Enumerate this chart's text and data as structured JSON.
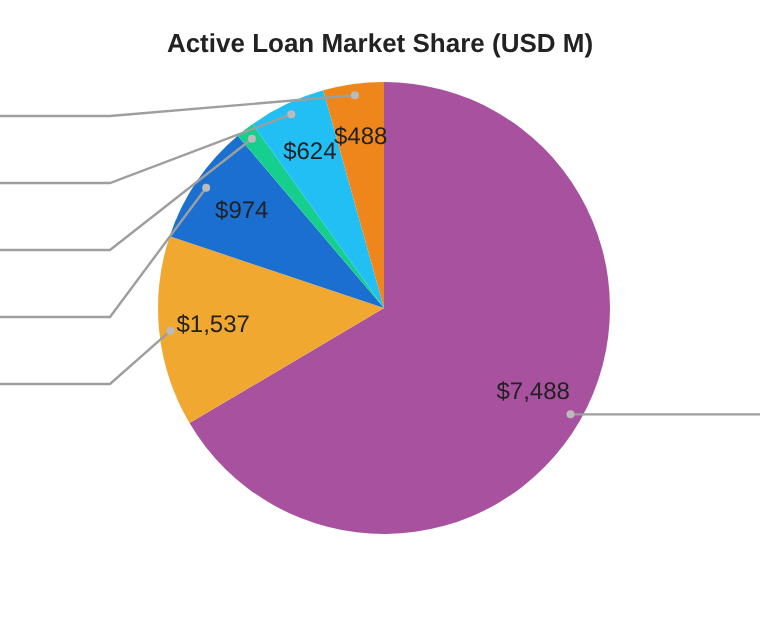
{
  "chart_data": {
    "type": "pie",
    "title": "Active Loan Market Share (USD M)",
    "categories": [
      null,
      null,
      null,
      null,
      null,
      null
    ],
    "values": [
      7488,
      1537,
      974,
      150,
      624,
      488
    ],
    "colors": [
      "#a8519e",
      "#f0a830",
      "#1a6fd1",
      "#16cf8e",
      "#22bff5",
      "#ef861b"
    ],
    "value_labels": [
      "$7,488",
      "$1,537",
      "$974",
      null,
      "$624",
      "$488"
    ]
  }
}
